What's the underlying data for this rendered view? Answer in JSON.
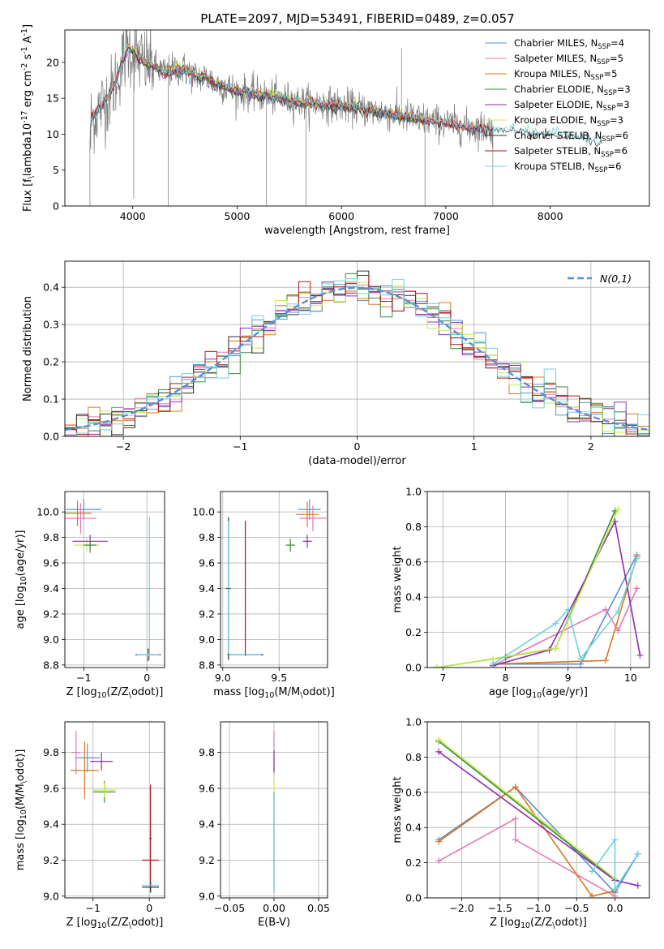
{
  "figure": {
    "title": "PLATE=2097, MJD=53491, FIBERID=0489, z=0.057"
  },
  "colors": {
    "chabrier_miles": "#5b8fd6",
    "salpeter_miles": "#e478b5",
    "kroupa_miles": "#d9781f",
    "chabrier_elodie": "#3d8a3d",
    "salpeter_elodie": "#8c2db0",
    "kroupa_elodie": "#c6ec4a",
    "chabrier_stelib": "#333333",
    "salpeter_stelib": "#b01818",
    "kroupa_stelib": "#6fd3dc",
    "grid": "#b0b0b0",
    "normal_curve": "#5b8fd6"
  },
  "chart_data": [
    {
      "id": "spectrum",
      "type": "line",
      "xlabel": "wavelength [Angstrom, rest frame]",
      "ylabel": "Flux [f$_\\lambda$10$^{-17}$ erg cm$^{-2}$ s$^{-1}$ A$^{-1}$]",
      "xlim": [
        3350,
        8950
      ],
      "ylim": [
        0,
        24.5
      ],
      "xticks": [
        4000,
        5000,
        6000,
        7000,
        8000
      ],
      "yticks": [
        0,
        5,
        10,
        15,
        20
      ],
      "grid": false,
      "legend_position": "top-right",
      "legend": [
        {
          "base": "Chabrier MILES, N",
          "sub": "SSP",
          "tail": "=4",
          "color_key": "chabrier_miles"
        },
        {
          "base": "Salpeter MILES, N",
          "sub": "SSP",
          "tail": "=5",
          "color_key": "salpeter_miles"
        },
        {
          "base": "Kroupa MILES, N",
          "sub": "SSP",
          "tail": "=5",
          "color_key": "kroupa_miles"
        },
        {
          "base": "Chabrier ELODIE, N",
          "sub": "SSP",
          "tail": "=3",
          "color_key": "chabrier_elodie"
        },
        {
          "base": "Salpeter ELODIE, N",
          "sub": "SSP",
          "tail": "=3",
          "color_key": "salpeter_elodie"
        },
        {
          "base": "Kroupa ELODIE, N",
          "sub": "SSP",
          "tail": "=3",
          "color_key": "kroupa_elodie"
        },
        {
          "base": "Chabrier STELIB, N",
          "sub": "SSP",
          "tail": "=6",
          "color_key": "chabrier_stelib"
        },
        {
          "base": "Salpeter STELIB, N",
          "sub": "SSP",
          "tail": "=6",
          "color_key": "salpeter_stelib"
        },
        {
          "base": "Kroupa STELIB, N",
          "sub": "SSP",
          "tail": "=6",
          "color_key": "kroupa_stelib"
        }
      ],
      "continuum": [
        [
          3600,
          12
        ],
        [
          3700,
          14
        ],
        [
          3800,
          16
        ],
        [
          3850,
          18
        ],
        [
          3900,
          20
        ],
        [
          3950,
          22
        ],
        [
          4000,
          21.5
        ],
        [
          4100,
          20
        ],
        [
          4200,
          19.5
        ],
        [
          4300,
          18.5
        ],
        [
          4400,
          19
        ],
        [
          4500,
          19
        ],
        [
          4600,
          18
        ],
        [
          4700,
          18
        ],
        [
          4800,
          17
        ],
        [
          4900,
          16.5
        ],
        [
          5000,
          16
        ],
        [
          5200,
          15.5
        ],
        [
          5400,
          15
        ],
        [
          5600,
          14.5
        ],
        [
          5800,
          14.2
        ],
        [
          6000,
          14
        ],
        [
          6200,
          13.5
        ],
        [
          6400,
          13
        ],
        [
          6600,
          12.5
        ],
        [
          6800,
          12
        ],
        [
          7000,
          11.5
        ],
        [
          7200,
          11
        ],
        [
          7400,
          10.8
        ],
        [
          7600,
          10.5
        ],
        [
          7800,
          10.2
        ],
        [
          8000,
          10
        ],
        [
          8200,
          9.8
        ],
        [
          8500,
          9
        ]
      ],
      "spikes": [
        [
          3590,
          0
        ],
        [
          4010,
          1
        ],
        [
          4340,
          0
        ],
        [
          5280,
          0
        ],
        [
          5660,
          0
        ],
        [
          6575,
          22
        ],
        [
          6800,
          0
        ],
        [
          7450,
          0
        ]
      ]
    },
    {
      "id": "residuals",
      "type": "line",
      "xlabel": "(data-model)/error",
      "ylabel": "Normed distribution",
      "xlim": [
        -2.5,
        2.5
      ],
      "ylim": [
        0,
        0.47
      ],
      "xticks": [
        -2,
        -1,
        0,
        1,
        2
      ],
      "yticks": [
        0.0,
        0.1,
        0.2,
        0.3,
        0.4
      ],
      "grid": true,
      "legend_position": "top-right",
      "legend": [
        {
          "label": "$\\mathcal{N}(0,1)$",
          "color_key": "normal_curve",
          "style": "dashed"
        }
      ],
      "bin_width": 0.1,
      "histogram_series_color_keys": [
        "chabrier_miles",
        "salpeter_miles",
        "kroupa_miles",
        "chabrier_elodie",
        "salpeter_elodie",
        "kroupa_elodie",
        "chabrier_stelib",
        "salpeter_stelib",
        "kroupa_stelib"
      ]
    },
    {
      "id": "age_vs_Z",
      "type": "scatter",
      "xlabel": "Z [log$_{10}$($Z/Z_\\odot$)]",
      "ylabel": "age  [log$_{10}$($age/yr$)]",
      "xlim": [
        -1.3,
        0.28
      ],
      "ylim": [
        8.78,
        10.16
      ],
      "xticks": [
        -1,
        0
      ],
      "yticks": [
        8.8,
        9.0,
        9.2,
        9.4,
        9.6,
        9.8,
        10.0
      ],
      "grid": true,
      "points": [
        {
          "x": -1.0,
          "y": 10.02,
          "xerr": 0.28,
          "yerr": 0.08,
          "color_key": "chabrier_miles"
        },
        {
          "x": -1.05,
          "y": 9.95,
          "xerr": 0.25,
          "yerr": 0.12,
          "color_key": "salpeter_miles"
        },
        {
          "x": -1.1,
          "y": 9.99,
          "xerr": 0.22,
          "yerr": 0.1,
          "color_key": "kroupa_miles"
        },
        {
          "x": -0.95,
          "y": 9.74,
          "xerr": 0.2,
          "yerr": 0.05,
          "color_key": "kroupa_elodie"
        },
        {
          "x": -0.9,
          "y": 9.77,
          "xerr": 0.28,
          "yerr": 0.05,
          "color_key": "salpeter_elodie"
        },
        {
          "x": -0.9,
          "y": 9.74,
          "xerr": 0.1,
          "yerr": 0.06,
          "color_key": "chabrier_elodie"
        },
        {
          "x": 0.02,
          "y": 8.88,
          "xerr": 0.2,
          "yerr": 0.05,
          "color_key": "chabrier_stelib"
        },
        {
          "x": 0.04,
          "y": 9.4,
          "xerr": 0.02,
          "yerr": 0.56,
          "color_key": "kroupa_stelib"
        },
        {
          "x": 0.02,
          "y": 8.88,
          "xerr": 0.18,
          "yerr": 0.01,
          "color_key": "kroupa_stelib"
        }
      ]
    },
    {
      "id": "age_vs_mass",
      "type": "scatter",
      "xlabel": "mass [log$_{10}$($M/M_\\odot$)]",
      "ylabel": "",
      "xlim": [
        8.98,
        9.93
      ],
      "ylim": [
        8.78,
        10.16
      ],
      "xticks": [
        9.0,
        9.5
      ],
      "yticks": [
        8.8,
        9.0,
        9.2,
        9.4,
        9.6,
        9.8,
        10.0
      ],
      "grid": true,
      "points": [
        {
          "x": 9.77,
          "y": 10.02,
          "xerr": 0.1,
          "yerr": 0.08,
          "color_key": "chabrier_miles"
        },
        {
          "x": 9.8,
          "y": 9.95,
          "xerr": 0.12,
          "yerr": 0.1,
          "color_key": "salpeter_miles"
        },
        {
          "x": 9.75,
          "y": 9.98,
          "xerr": 0.1,
          "yerr": 0.1,
          "color_key": "kroupa_miles"
        },
        {
          "x": 9.6,
          "y": 9.74,
          "xerr": 0.04,
          "yerr": 0.05,
          "color_key": "kroupa_elodie"
        },
        {
          "x": 9.6,
          "y": 9.74,
          "xerr": 0.04,
          "yerr": 0.05,
          "color_key": "chabrier_elodie"
        },
        {
          "x": 9.75,
          "y": 9.77,
          "xerr": 0.04,
          "yerr": 0.05,
          "color_key": "salpeter_elodie"
        },
        {
          "x": 9.05,
          "y": 9.4,
          "xerr": 0.02,
          "yerr": 0.56,
          "color_key": "chabrier_stelib"
        },
        {
          "x": 9.2,
          "y": 9.4,
          "xerr": 0.0,
          "yerr": 0.53,
          "color_key": "salpeter_stelib"
        },
        {
          "x": 9.05,
          "y": 9.4,
          "xerr": 0.0,
          "yerr": 0.53,
          "color_key": "kroupa_stelib"
        },
        {
          "x": 9.2,
          "y": 8.88,
          "xerr": 0.16,
          "yerr": 0.0,
          "color_key": "chabrier_stelib"
        },
        {
          "x": 9.2,
          "y": 8.88,
          "xerr": 0.14,
          "yerr": 0.0,
          "color_key": "kroupa_stelib"
        }
      ]
    },
    {
      "id": "weight_vs_age",
      "type": "line",
      "xlabel": "age  [log$_{10}$($age/yr$)]",
      "ylabel": "mass weight",
      "xlim": [
        6.75,
        10.3
      ],
      "ylim": [
        0,
        1.0
      ],
      "xticks": [
        7,
        8,
        9,
        10
      ],
      "yticks": [
        0.0,
        0.2,
        0.4,
        0.6,
        0.8,
        1.0
      ],
      "grid": true,
      "series": [
        {
          "color_key": "chabrier_miles",
          "x": [
            7.8,
            9.2,
            10.1
          ],
          "y": [
            0.02,
            0.02,
            0.64
          ]
        },
        {
          "color_key": "salpeter_miles",
          "x": [
            7.8,
            9.6,
            9.8,
            10.1
          ],
          "y": [
            0.01,
            0.33,
            0.21,
            0.45
          ]
        },
        {
          "color_key": "kroupa_miles",
          "x": [
            7.8,
            9.6,
            10.1
          ],
          "y": [
            0.02,
            0.04,
            0.63
          ]
        },
        {
          "color_key": "chabrier_elodie",
          "x": [
            6.9,
            8.0,
            8.8,
            9.75
          ],
          "y": [
            0.0,
            0.06,
            0.11,
            0.89
          ]
        },
        {
          "color_key": "salpeter_elodie",
          "x": [
            7.8,
            8.7,
            9.75,
            10.15
          ],
          "y": [
            0.01,
            0.1,
            0.83,
            0.07
          ]
        },
        {
          "color_key": "kroupa_elodie",
          "x": [
            6.9,
            7.8,
            8.8,
            9.8
          ],
          "y": [
            0.0,
            0.05,
            0.11,
            0.9
          ]
        },
        {
          "color_key": "kroupa_stelib",
          "x": [
            7.8,
            8.8,
            9.0,
            9.2,
            9.8,
            10.1
          ],
          "y": [
            0.02,
            0.25,
            0.33,
            0.05,
            0.32,
            0.62
          ]
        }
      ]
    },
    {
      "id": "mass_vs_Z",
      "type": "scatter",
      "xlabel": "Z [log$_{10}$($Z/Z_\\odot$)]",
      "ylabel": "mass [log$_{10}$($M/M_\\odot$)]",
      "xlim": [
        -1.5,
        0.27
      ],
      "ylim": [
        8.99,
        9.97
      ],
      "xticks": [
        -1,
        0
      ],
      "yticks": [
        9.0,
        9.2,
        9.4,
        9.6,
        9.8
      ],
      "grid": true,
      "points": [
        {
          "x": -1.1,
          "y": 9.77,
          "xerr": 0.22,
          "yerr": 0.08,
          "color_key": "chabrier_miles"
        },
        {
          "x": -1.3,
          "y": 9.8,
          "xerr": 0.08,
          "yerr": 0.12,
          "color_key": "salpeter_miles"
        },
        {
          "x": -1.15,
          "y": 9.7,
          "xerr": 0.25,
          "yerr": 0.16,
          "color_key": "kroupa_miles"
        },
        {
          "x": -0.8,
          "y": 9.58,
          "xerr": 0.2,
          "yerr": 0.06,
          "color_key": "chabrier_elodie"
        },
        {
          "x": -0.85,
          "y": 9.75,
          "xerr": 0.2,
          "yerr": 0.05,
          "color_key": "salpeter_elodie"
        },
        {
          "x": -0.8,
          "y": 9.59,
          "xerr": 0.2,
          "yerr": 0.04,
          "color_key": "kroupa_elodie"
        },
        {
          "x": 0.02,
          "y": 9.2,
          "xerr": 0.15,
          "yerr": 0.0,
          "color_key": "salpeter_stelib"
        },
        {
          "x": 0.02,
          "y": 9.32,
          "xerr": 0.02,
          "yerr": 0.3,
          "color_key": "salpeter_stelib"
        },
        {
          "x": 0.02,
          "y": 9.05,
          "xerr": 0.15,
          "yerr": 0.03,
          "color_key": "chabrier_stelib"
        },
        {
          "x": 0.02,
          "y": 9.06,
          "xerr": 0.15,
          "yerr": 0.0,
          "color_key": "kroupa_stelib"
        }
      ]
    },
    {
      "id": "mass_vs_ebv",
      "type": "scatter",
      "xlabel": "E(B-V)",
      "ylabel": "",
      "xlim": [
        -0.06,
        0.06
      ],
      "ylim": [
        8.99,
        9.97
      ],
      "xticks": [
        -0.05,
        0.0,
        0.05
      ],
      "yticks": [
        9.0,
        9.2,
        9.4,
        9.6,
        9.8
      ],
      "grid": true,
      "points": [
        {
          "x": 0.0,
          "y": 9.8,
          "xerr": 0.0,
          "yerr": 0.12,
          "color_key": "salpeter_miles"
        },
        {
          "x": 0.0,
          "y": 9.75,
          "xerr": 0.0,
          "yerr": 0.06,
          "color_key": "salpeter_elodie"
        },
        {
          "x": 0.0,
          "y": 9.6,
          "xerr": 0.0,
          "yerr": 0.05,
          "color_key": "kroupa_elodie"
        },
        {
          "x": 0.0,
          "y": 9.3,
          "xerr": 0.0,
          "yerr": 0.28,
          "color_key": "chabrier_stelib"
        },
        {
          "x": 0.0,
          "y": 9.3,
          "xerr": 0.0,
          "yerr": 0.28,
          "color_key": "kroupa_stelib"
        }
      ]
    },
    {
      "id": "weight_vs_Z",
      "type": "line",
      "xlabel": "Z [log$_{10}$($Z/Z_\\odot$)]",
      "ylabel": "mass weight",
      "xlim": [
        -2.45,
        0.45
      ],
      "ylim": [
        0,
        1.0
      ],
      "xticks": [
        -2.0,
        -1.5,
        -1.0,
        -0.5,
        0.0
      ],
      "yticks": [
        0.0,
        0.2,
        0.4,
        0.6,
        0.8,
        1.0
      ],
      "grid": true,
      "series": [
        {
          "color_key": "chabrier_miles",
          "x": [
            -2.3,
            -1.3,
            0.0,
            0.3
          ],
          "y": [
            0.33,
            0.63,
            0.03,
            0.25
          ]
        },
        {
          "color_key": "salpeter_miles",
          "x": [
            -2.3,
            -1.3,
            -1.3,
            0.0
          ],
          "y": [
            0.21,
            0.45,
            0.33,
            0.01
          ]
        },
        {
          "color_key": "kroupa_miles",
          "x": [
            -2.3,
            -1.3,
            -0.3,
            0.0
          ],
          "y": [
            0.32,
            0.63,
            0.01,
            0.04
          ]
        },
        {
          "color_key": "chabrier_elodie",
          "x": [
            -2.3,
            0.0
          ],
          "y": [
            0.89,
            0.1
          ]
        },
        {
          "color_key": "salpeter_elodie",
          "x": [
            -2.3,
            0.0,
            0.3
          ],
          "y": [
            0.83,
            0.1,
            0.07
          ]
        },
        {
          "color_key": "kroupa_elodie",
          "x": [
            -2.3,
            0.0
          ],
          "y": [
            0.9,
            0.11
          ]
        },
        {
          "color_key": "kroupa_stelib",
          "x": [
            -0.3,
            0.0,
            0.0,
            0.3
          ],
          "y": [
            0.15,
            0.33,
            0.05,
            0.25
          ]
        }
      ]
    }
  ]
}
